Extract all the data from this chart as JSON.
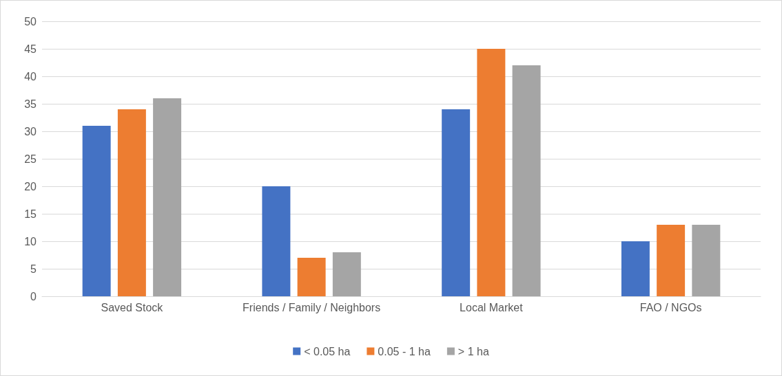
{
  "chart_data": {
    "type": "bar",
    "categories": [
      "Saved Stock",
      "Friends / Family / Neighbors",
      "Local Market",
      "FAO / NGOs"
    ],
    "series": [
      {
        "name": "< 0.05 ha",
        "color": "#4472c4",
        "values": [
          31,
          20,
          34,
          10
        ]
      },
      {
        "name": "0.05 - 1 ha",
        "color": "#ed7d31",
        "values": [
          34,
          7,
          45,
          13
        ]
      },
      {
        "name": "> 1 ha",
        "color": "#a5a5a5",
        "values": [
          36,
          8,
          42,
          13
        ]
      }
    ],
    "ylim": [
      0,
      50
    ],
    "yticks": [
      0,
      5,
      10,
      15,
      20,
      25,
      30,
      35,
      40,
      45,
      50
    ],
    "grid": "y",
    "legend": "bottom"
  }
}
